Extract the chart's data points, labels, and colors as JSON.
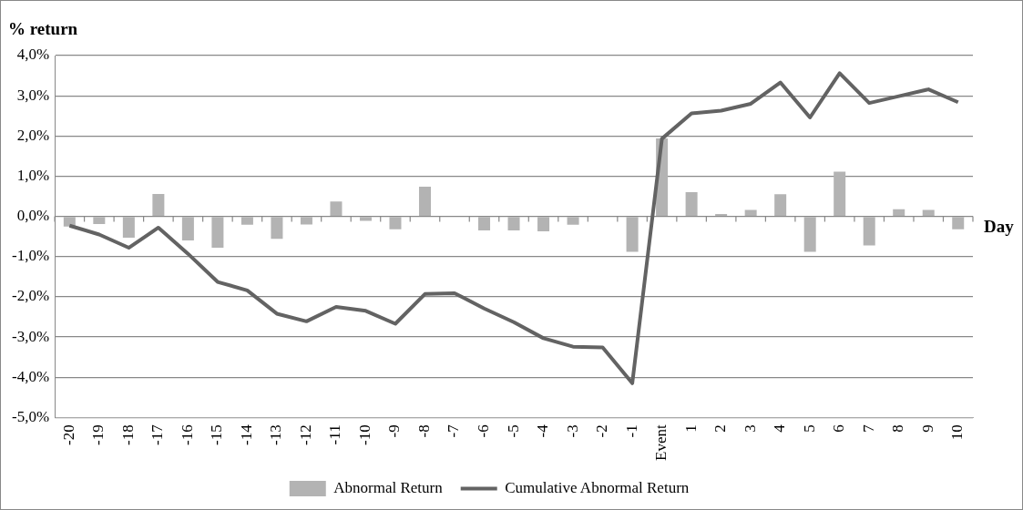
{
  "chart_data": {
    "type": "bar",
    "xlabel": "Day",
    "ylabel": "% return",
    "categories": [
      "-20",
      "-19",
      "-18",
      "-17",
      "-16",
      "-15",
      "-14",
      "-13",
      "-12",
      "-11",
      "-10",
      "-9",
      "-8",
      "-7",
      "-6",
      "-5",
      "-4",
      "-3",
      "-2",
      "-1",
      "Event",
      "1",
      "2",
      "3",
      "4",
      "5",
      "6",
      "7",
      "8",
      "9",
      "10"
    ],
    "series": [
      {
        "name": "Abnormal Return",
        "type": "bar",
        "color": "#b3b3b3",
        "values": [
          -0.25,
          -0.19,
          -0.53,
          0.56,
          -0.6,
          -0.78,
          -0.21,
          -0.56,
          -0.2,
          0.37,
          -0.11,
          -0.32,
          0.74,
          0,
          -0.35,
          -0.35,
          -0.37,
          -0.21,
          0,
          -0.88,
          1.94,
          0.6,
          0.06,
          0.16,
          0.55,
          -0.88,
          1.11,
          -0.72,
          0.18,
          0.16,
          -0.32
        ]
      },
      {
        "name": "Cumulative Abnormal Return",
        "type": "line",
        "color": "#636363",
        "values": [
          -0.23,
          -0.45,
          -0.78,
          -0.28,
          -0.93,
          -1.63,
          -1.84,
          -2.42,
          -2.61,
          -2.25,
          -2.35,
          -2.67,
          -1.93,
          -1.91,
          -2.29,
          -2.63,
          -3.03,
          -3.24,
          -3.26,
          -4.15,
          1.93,
          2.56,
          2.63,
          2.8,
          3.33,
          2.46,
          3.56,
          2.82,
          2.99,
          3.16,
          2.84
        ]
      }
    ],
    "ylim": [
      -5,
      4
    ],
    "yticks": [
      {
        "value": -5,
        "label": "-5,0%"
      },
      {
        "value": -4,
        "label": "-4,0%"
      },
      {
        "value": -3,
        "label": "-3,0%"
      },
      {
        "value": -2,
        "label": "-2,0%"
      },
      {
        "value": -1,
        "label": "-1,0%"
      },
      {
        "value": 0,
        "label": "0,0%"
      },
      {
        "value": 1,
        "label": "1,0%"
      },
      {
        "value": 2,
        "label": "2,0%"
      },
      {
        "value": 3,
        "label": "3,0%"
      },
      {
        "value": 4,
        "label": "4,0%"
      }
    ],
    "grid": "y",
    "legend": "bottom",
    "marker": "none",
    "line_style": "solid"
  }
}
